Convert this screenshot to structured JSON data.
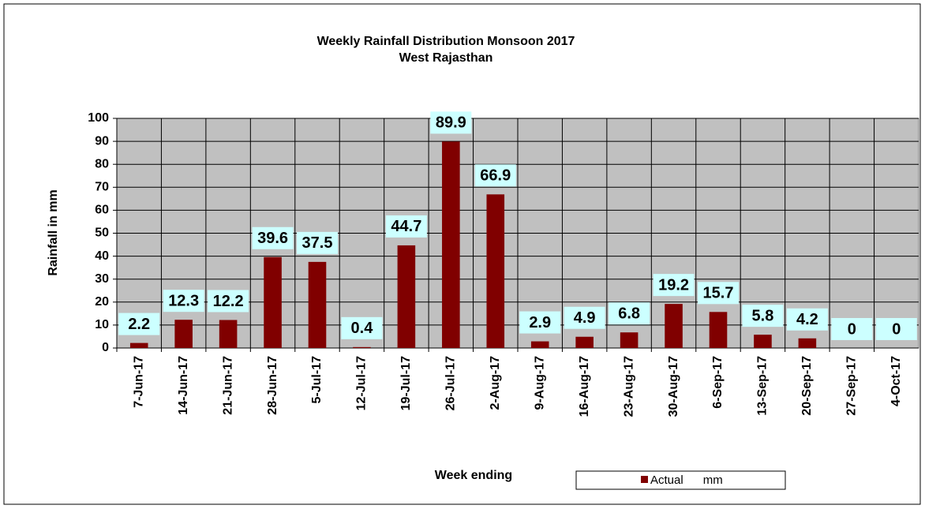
{
  "chart_data": {
    "type": "bar",
    "title": "Weekly Rainfall Distribution Monsoon 2017",
    "subtitle": "West Rajasthan",
    "y_label": "Rainfall in mm",
    "x_label": "Week ending",
    "categories": [
      "7-Jun-17",
      "14-Jun-17",
      "21-Jun-17",
      "28-Jun-17",
      "5-Jul-17",
      "12-Jul-17",
      "19-Jul-17",
      "26-Jul-17",
      "2-Aug-17",
      "9-Aug-17",
      "16-Aug-17",
      "23-Aug-17",
      "30-Aug-17",
      "6-Sep-17",
      "13-Sep-17",
      "20-Sep-17",
      "27-Sep-17",
      "4-Oct-17"
    ],
    "series": [
      {
        "name": "Actual      mm",
        "color": "#800000",
        "values": [
          2.2,
          12.3,
          12.2,
          39.6,
          37.5,
          0.4,
          44.7,
          89.9,
          66.9,
          2.9,
          4.9,
          6.8,
          19.2,
          15.7,
          5.8,
          4.2,
          0,
          0
        ]
      }
    ],
    "ylim": [
      0,
      100
    ],
    "yticks": [
      0,
      10,
      20,
      30,
      40,
      50,
      60,
      70,
      80,
      90,
      100
    ],
    "grid": true,
    "legend": "bottom"
  }
}
